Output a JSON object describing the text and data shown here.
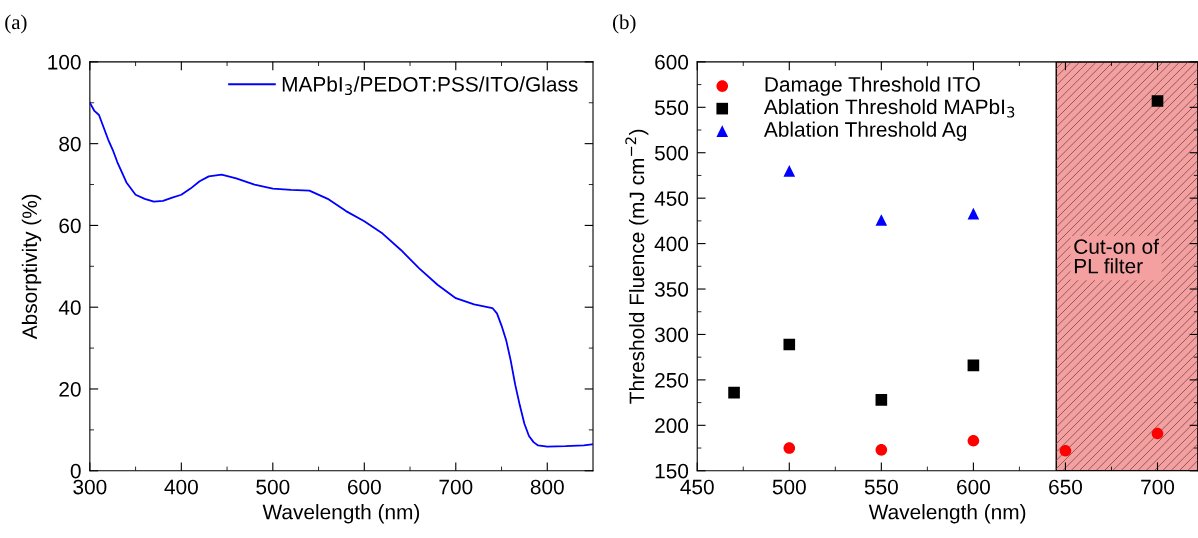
{
  "chart_data": [
    {
      "type": "line",
      "title": "(a)",
      "xlabel": "Wavelength (nm)",
      "ylabel": "Absorptivity (%)",
      "legend": "top right",
      "grid": false,
      "marker": "none",
      "line_style": "solid",
      "xlim": [
        300,
        850
      ],
      "xticks": [
        300,
        400,
        500,
        600,
        700,
        800
      ],
      "ylim": [
        0,
        100
      ],
      "yticks": [
        0,
        20,
        40,
        60,
        80,
        100
      ],
      "series": [
        {
          "name": "MAPbI$_{3}$/PEDOT:PSS/ITO/Glass",
          "color": "#0000ff",
          "x": [
            300,
            305,
            310,
            315,
            320,
            325,
            330,
            340,
            350,
            360,
            370,
            380,
            390,
            400,
            410,
            420,
            430,
            444,
            460,
            480,
            500,
            520,
            540,
            560,
            580,
            600,
            620,
            640,
            660,
            680,
            700,
            720,
            740,
            745,
            750,
            755,
            760,
            765,
            770,
            775,
            780,
            785,
            790,
            800,
            820,
            840,
            850
          ],
          "values": [
            90,
            88,
            87,
            84,
            81,
            78.5,
            75.5,
            70.5,
            67.5,
            66.5,
            65.8,
            66,
            66.8,
            67.5,
            69,
            70.8,
            72,
            72.4,
            71.5,
            70,
            69,
            68.7,
            68.5,
            66.5,
            63.5,
            61,
            58,
            54,
            49.5,
            45.5,
            42.2,
            40.7,
            39.8,
            38.5,
            35.5,
            32,
            27,
            21,
            16,
            11.5,
            8.5,
            7,
            6.2,
            5.9,
            6,
            6.2,
            6.5
          ]
        }
      ]
    },
    {
      "type": "scatter",
      "title": "(b)",
      "xlabel": "Wavelength (nm)",
      "ylabel": "Threshold Fluence (mJ cm$^{−2}$)",
      "legend": "top left",
      "grid": false,
      "xlim": [
        450,
        722
      ],
      "xticks": [
        450,
        500,
        550,
        600,
        650,
        700
      ],
      "ylim": [
        150,
        600
      ],
      "yticks": [
        150,
        200,
        250,
        300,
        350,
        400,
        450,
        500,
        550,
        600
      ],
      "bands": [
        {
          "axis": "x",
          "from": 645,
          "to": 722,
          "label": "Cut-on of\nPL filter",
          "color": "#f4a0a0"
        }
      ],
      "series": [
        {
          "name": "Damage Threshold ITO",
          "color": "#ff0000",
          "marker": "circle",
          "x": [
            500,
            550,
            600,
            650,
            700
          ],
          "values": [
            175,
            173,
            183,
            172,
            191
          ]
        },
        {
          "name": "Ablation Threshold MAPbI$_{3}$",
          "color": "#000000",
          "marker": "square",
          "x": [
            470,
            500,
            550,
            600,
            700
          ],
          "values": [
            236,
            289,
            228,
            266,
            557
          ]
        },
        {
          "name": "Ablation Threshold Ag",
          "color": "#0000ff",
          "marker": "triangle",
          "x": [
            500,
            550,
            600
          ],
          "values": [
            480,
            426,
            433
          ]
        }
      ]
    }
  ]
}
